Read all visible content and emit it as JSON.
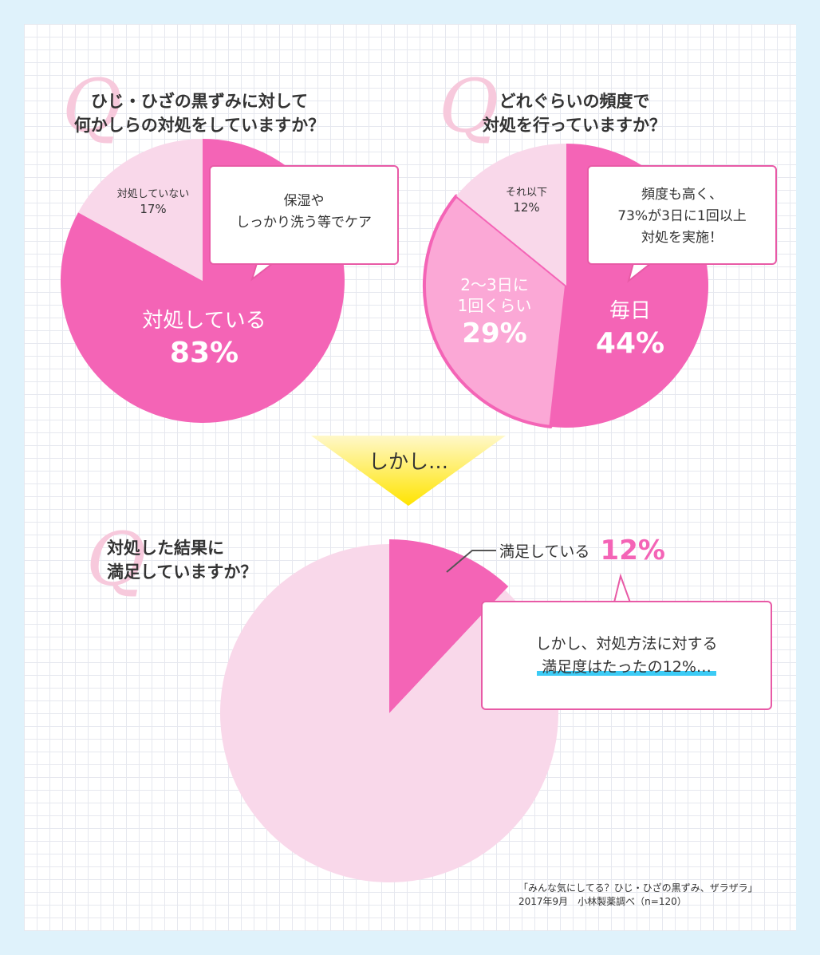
{
  "chart_data": [
    {
      "type": "pie",
      "title": "ひじ・ひざの黒ずみに対して何かしらの対処をしていますか？",
      "title_lines": [
        "ひじ・ひざの黒ずみに対して",
        "何かしらの対処をしていますか？"
      ],
      "slices": [
        {
          "label": "対処している",
          "value": 83,
          "display": "83%",
          "color": "#f464b6"
        },
        {
          "label": "対処していない",
          "value": 17,
          "display": "17%",
          "color": "#f9d8ea"
        }
      ],
      "callout_lines": [
        "保湿や",
        "しっかり洗う等でケア"
      ]
    },
    {
      "type": "pie",
      "title": "どれぐらいの頻度で対処を行っていますか？",
      "title_lines": [
        "どれぐらいの頻度で",
        "対処を行っていますか？"
      ],
      "slices": [
        {
          "label": "毎日",
          "value": 44,
          "display": "44%",
          "color": "#f464b6"
        },
        {
          "label": "2〜3日に1回くらい",
          "label_lines": [
            "2〜3日に",
            "1回くらい"
          ],
          "value": 29,
          "display": "29%",
          "color": "#fba8d6"
        },
        {
          "label": "それ以下",
          "value": 12,
          "display": "12%",
          "color": "#f9d8ea"
        }
      ],
      "callout_lines": [
        "頻度も高く、",
        "73%が3日に1回以上",
        "対処を実施！"
      ]
    },
    {
      "type": "pie",
      "title": "対処した結果に満足していますか？",
      "title_lines": [
        "対処した結果に",
        "満足していますか？"
      ],
      "slices": [
        {
          "label": "満足している",
          "value": 12,
          "display": "12%",
          "color": "#f464b6"
        },
        {
          "value": 88,
          "color": "#f9d8ea"
        }
      ],
      "callout_lines": [
        "しかし、対処方法に対する",
        "満足度はたったの12%…"
      ]
    }
  ],
  "q_mark": "Q",
  "transition_label": "しかし…",
  "source_lines": [
    "「みんな気にしてる？ひじ・ひざの黒ずみ、ザラザラ」",
    "2017年9月　小林製薬調べ（n=120）"
  ],
  "colors": {
    "pink_main": "#f464b6",
    "pink_mid": "#fba8d6",
    "pink_light": "#f9d8ea",
    "callout_border": "#e85aa6",
    "highlight_cyan": "#3ccbf5",
    "arrow_yellow_top": "#fff8c9",
    "arrow_yellow_bottom": "#ffe400",
    "background": "#dff2fb"
  }
}
